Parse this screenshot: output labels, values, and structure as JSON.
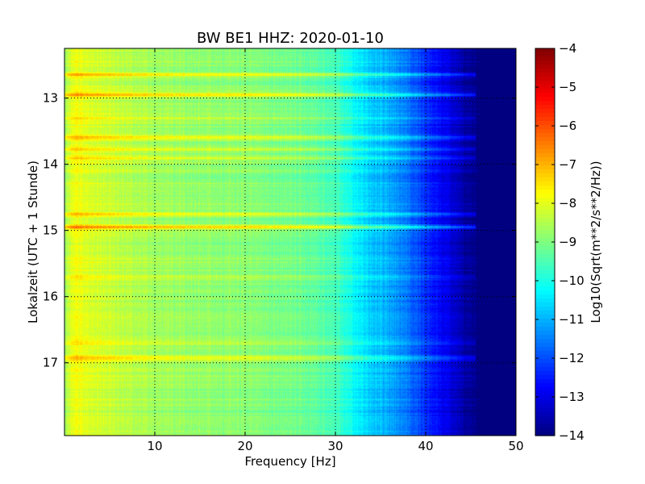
{
  "chart_data": {
    "type": "heatmap",
    "title": "BW BE1 HHZ: 2020-01-10",
    "xlabel": "Frequency [Hz]",
    "ylabel": "Lokalzeit (UTC + 1 Stunde)",
    "xlim": [
      0,
      50
    ],
    "ylim": [
      12.25,
      18.1
    ],
    "y_inverted": true,
    "x_ticks": [
      10,
      20,
      30,
      40,
      50
    ],
    "x_tick_labels": [
      "10",
      "20",
      "30",
      "40",
      "50"
    ],
    "y_ticks": [
      13,
      14,
      15,
      16,
      17
    ],
    "y_tick_labels": [
      "13",
      "14",
      "15",
      "16",
      "17"
    ],
    "grid": true,
    "grid_style": "dotted",
    "colormap": "jet",
    "colorbar": {
      "label": "Log10(Sqrt(m**2/s**2/Hz))",
      "min": -14,
      "max": -4,
      "ticks": [
        -4,
        -5,
        -6,
        -7,
        -8,
        -9,
        -10,
        -11,
        -12,
        -13,
        -14
      ],
      "tick_labels": [
        "−4",
        "−5",
        "−6",
        "−7",
        "−8",
        "−9",
        "−10",
        "−11",
        "−12",
        "−13",
        "−14"
      ]
    },
    "spectrum_profile": {
      "frequency_hz": [
        0,
        0.5,
        1,
        2,
        3,
        5,
        8,
        10,
        15,
        20,
        25,
        28,
        30,
        31,
        32,
        33,
        34,
        35,
        36,
        37,
        38,
        39,
        40,
        41,
        42,
        43,
        44,
        45,
        46,
        50
      ],
      "log10_psd": [
        -8.8,
        -8.2,
        -7.9,
        -8.0,
        -8.1,
        -8.3,
        -8.5,
        -8.7,
        -8.8,
        -8.9,
        -9.1,
        -9.3,
        -9.6,
        -9.9,
        -10.2,
        -10.5,
        -10.8,
        -10.9,
        -11.1,
        -11.3,
        -11.6,
        -11.9,
        -12.3,
        -12.6,
        -12.9,
        -13.2,
        -13.5,
        -13.8,
        -14.0,
        -14.0
      ]
    },
    "energetic_time_bands": [
      {
        "time": 12.65,
        "delta": 1.0
      },
      {
        "time": 12.95,
        "delta": 1.1
      },
      {
        "time": 13.3,
        "delta": 0.5
      },
      {
        "time": 13.6,
        "delta": 0.9
      },
      {
        "time": 13.78,
        "delta": 0.8
      },
      {
        "time": 13.9,
        "delta": 0.7
      },
      {
        "time": 14.75,
        "delta": 0.7
      },
      {
        "time": 14.95,
        "delta": 1.3
      },
      {
        "time": 15.7,
        "delta": 0.5
      },
      {
        "time": 16.7,
        "delta": 0.5
      },
      {
        "time": 16.93,
        "delta": 1.0
      }
    ]
  }
}
